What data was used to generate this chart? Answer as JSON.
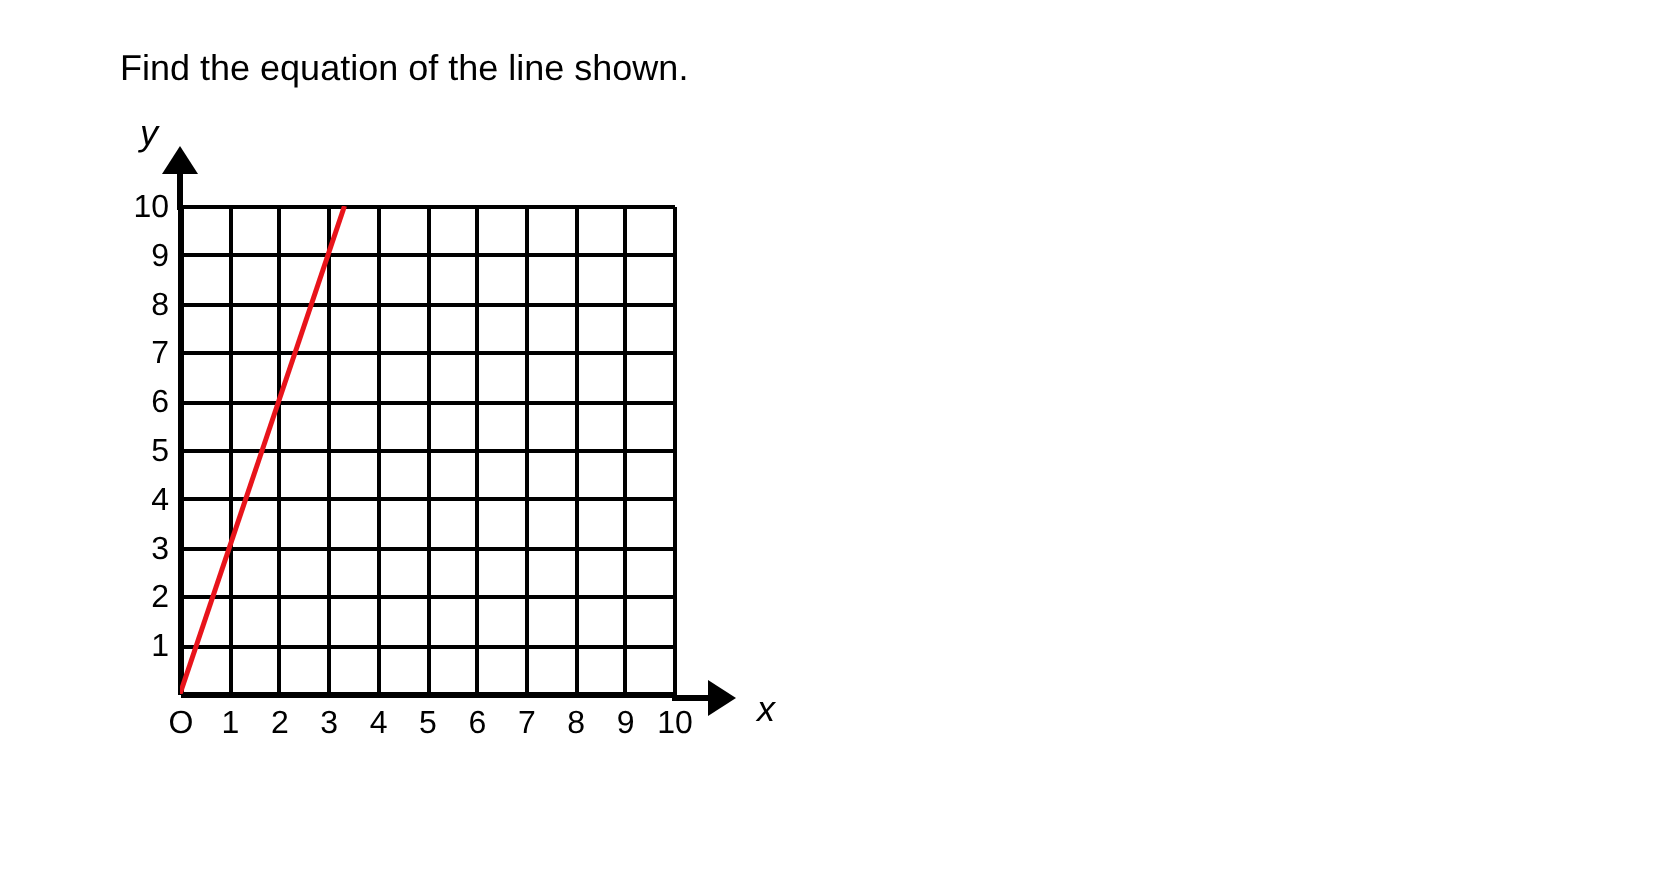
{
  "chart_data": {
    "type": "line",
    "title": "Find the equation of the line shown.",
    "xlabel": "x",
    "ylabel": "y",
    "x": [
      0,
      3.33
    ],
    "series": [
      {
        "color": "#e8141b",
        "values": [
          0,
          10
        ]
      }
    ],
    "xlim": [
      0,
      10
    ],
    "ylim": [
      0,
      10
    ],
    "xticks": [
      {
        "value": 0,
        "label": "O"
      },
      1,
      2,
      3,
      4,
      5,
      6,
      7,
      8,
      9,
      10
    ],
    "yticks": [
      1,
      2,
      3,
      4,
      5,
      6,
      7,
      8,
      9,
      10
    ],
    "grid": true,
    "marker": "none",
    "line_style": "solid"
  }
}
